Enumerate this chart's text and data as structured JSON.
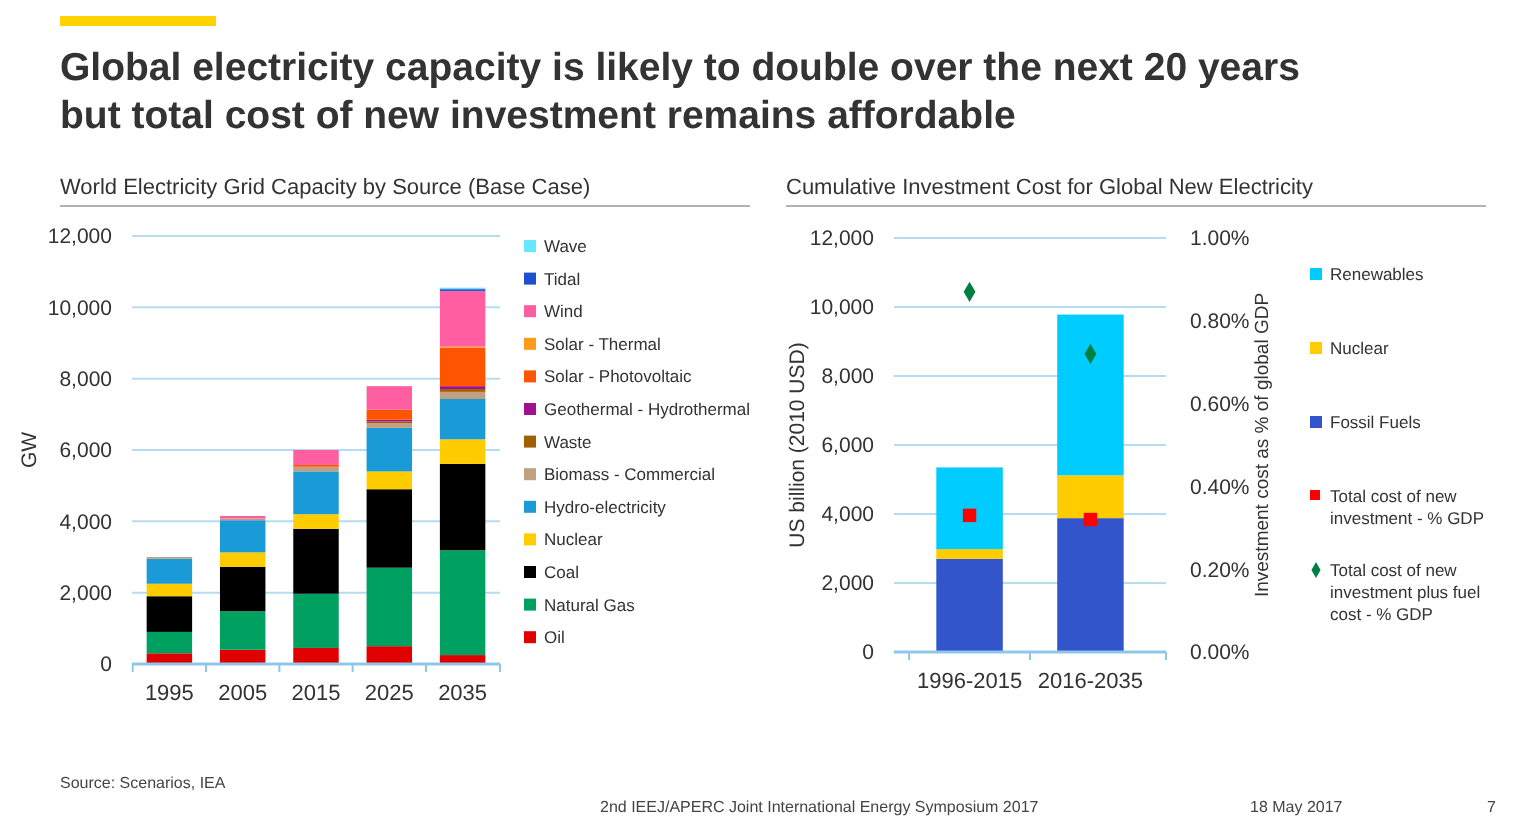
{
  "chart_data": [
    {
      "type": "bar",
      "title": "Global electricity capacity is likely to double over the next 20 years but total cost of new investment remains affordable",
      "subtitle": "World Electricity Grid Capacity by Source (Base Case)",
      "ylabel": "GW",
      "categories": [
        "1995",
        "2005",
        "2015",
        "2025",
        "2035"
      ],
      "stacked": true,
      "grid": "y",
      "legend": "right",
      "ylim": [
        0,
        12000
      ],
      "yticks": [
        0,
        {
          "value": 2000,
          "label": "2,000"
        },
        {
          "value": 4000,
          "label": "4,000"
        },
        {
          "value": 6000,
          "label": "6,000"
        },
        {
          "value": 8000,
          "label": "8,000"
        },
        {
          "value": 10000,
          "label": "10,000"
        },
        {
          "value": 12000,
          "label": "12,000"
        }
      ],
      "series": [
        {
          "name": "Oil",
          "color": "#e00000",
          "values": [
            300,
            400,
            450,
            500,
            250
          ]
        },
        {
          "name": "Natural Gas",
          "color": "#00a060",
          "values": [
            600,
            1080,
            1520,
            2200,
            2940
          ]
        },
        {
          "name": "Coal",
          "color": "#000000",
          "values": [
            1000,
            1240,
            1820,
            2200,
            2420
          ]
        },
        {
          "name": "Nuclear",
          "color": "#ffcc00",
          "values": [
            350,
            410,
            410,
            500,
            690
          ]
        },
        {
          "name": "Hydro-electricity",
          "color": "#1a9ad6",
          "values": [
            700,
            900,
            1200,
            1220,
            1130
          ]
        },
        {
          "name": "Biomass - Commercial",
          "color": "#c0a080",
          "values": [
            50,
            50,
            130,
            130,
            200
          ]
        },
        {
          "name": "Waste",
          "color": "#a06000",
          "values": [
            0,
            0,
            0,
            50,
            80
          ]
        },
        {
          "name": "Geothermal - Hydrothermal",
          "color": "#a0108f",
          "values": [
            0,
            0,
            0,
            50,
            80
          ]
        },
        {
          "name": "Solar - Photovoltaic",
          "color": "#ff5500",
          "values": [
            0,
            0,
            50,
            280,
            1080
          ]
        },
        {
          "name": "Solar - Thermal",
          "color": "#ff9a1a",
          "values": [
            0,
            0,
            0,
            0,
            30
          ]
        },
        {
          "name": "Wind",
          "color": "#ff5fa0",
          "values": [
            0,
            70,
            420,
            660,
            1560
          ]
        },
        {
          "name": "Tidal",
          "color": "#1f4fcc",
          "values": [
            0,
            0,
            0,
            0,
            50
          ]
        },
        {
          "name": "Wave",
          "color": "#66e8ff",
          "values": [
            0,
            0,
            0,
            0,
            40
          ]
        }
      ],
      "annotations": [
        "Source: Scenarios, IEA"
      ]
    },
    {
      "type": "bar",
      "title": "Cumulative Investment Cost for Global New Electricity",
      "ylabel": "US billion (2010 USD)",
      "y2label": "Investment cost as % of global GDP",
      "categories": [
        "1996-2015",
        "2016-2035"
      ],
      "stacked": true,
      "grid": "y",
      "legend": "right",
      "ylim": [
        0,
        12000
      ],
      "yticks": [
        0,
        {
          "value": 2000,
          "label": "2,000"
        },
        {
          "value": 4000,
          "label": "4,000"
        },
        {
          "value": 6000,
          "label": "6,000"
        },
        {
          "value": 8000,
          "label": "8,000"
        },
        {
          "value": 10000,
          "label": "10,000"
        },
        {
          "value": 12000,
          "label": "12,000"
        }
      ],
      "y2lim": [
        0,
        1
      ],
      "y2ticks": [
        {
          "value": 0,
          "label": "0.00%"
        },
        {
          "value": 0.2,
          "label": "0.20%"
        },
        {
          "value": 0.4,
          "label": "0.40%"
        },
        {
          "value": 0.6,
          "label": "0.60%"
        },
        {
          "value": 0.8,
          "label": "0.80%"
        },
        {
          "value": 1,
          "label": "1.00%"
        }
      ],
      "series": [
        {
          "name": "Fossil Fuels",
          "color": "#3355cc",
          "values": [
            2700,
            3880
          ]
        },
        {
          "name": "Nuclear",
          "color": "#ffcc00",
          "values": [
            280,
            1240
          ]
        },
        {
          "name": "Renewables",
          "color": "#00ccff",
          "values": [
            2370,
            4660
          ]
        },
        {
          "name": "Total cost of new investment - % GDP",
          "type": "scatter",
          "axis": "y2",
          "marker": "square",
          "color": "#ff0000",
          "values": [
            0.33,
            0.32
          ]
        },
        {
          "name": "Total cost of new investment plus fuel cost - % GDP",
          "type": "scatter",
          "axis": "y2",
          "marker": "diamond",
          "color": "#008040",
          "values": [
            0.87,
            0.72
          ]
        }
      ],
      "annotations": [
        "2nd IEEJ/APERC Joint International Energy Symposium 2017",
        "18 May 2017",
        "7"
      ]
    }
  ]
}
